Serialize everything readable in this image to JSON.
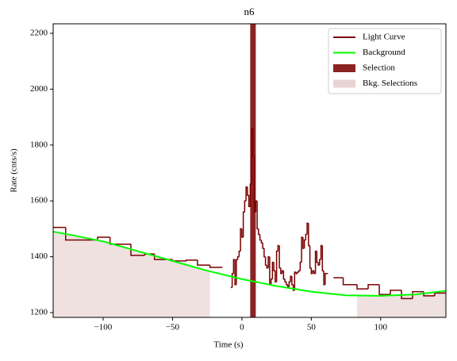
{
  "chart_data": {
    "type": "lightcurve",
    "title": "n6",
    "x_label": "Time (s)",
    "y_label": "Rate (cnts/s)",
    "xlim": [
      -136,
      147
    ],
    "ylim": [
      1183,
      2234
    ],
    "xticks": [
      {
        "value": -100,
        "label": "−100"
      },
      {
        "value": -50,
        "label": "−50"
      },
      0,
      50,
      100
    ],
    "yticks": [
      1200,
      1400,
      1600,
      1800,
      2000,
      2200
    ],
    "legend": "upper right",
    "light_curve": {
      "name": "Light Curve",
      "color": "#7a0000",
      "bins": [
        -136,
        -127,
        -104,
        -95,
        -80,
        -70,
        -63,
        -50,
        -40,
        -32,
        -23,
        -14,
        -8,
        -7,
        -6,
        -5,
        -4,
        -3,
        -2,
        -1,
        0,
        1,
        2,
        3,
        4,
        5,
        6,
        7,
        8,
        9,
        10,
        11,
        12,
        13,
        14,
        15,
        16,
        17,
        18,
        19,
        20,
        21,
        22,
        23,
        24,
        25,
        26,
        27,
        28,
        29,
        30,
        31,
        32,
        33,
        34,
        35,
        36,
        37,
        38,
        39,
        40,
        41,
        42,
        43,
        44,
        45,
        46,
        47,
        48,
        49,
        50,
        51,
        52,
        53,
        54,
        55,
        56,
        57,
        58,
        59,
        60,
        61,
        62,
        66,
        73,
        83,
        91,
        99,
        107,
        115,
        123,
        131,
        139,
        147
      ],
      "values": [
        1505,
        1460,
        1470,
        1445,
        1405,
        1410,
        1390,
        1385,
        1388,
        1370,
        1362,
        null,
        1290,
        1340,
        1390,
        1300,
        1390,
        1400,
        1420,
        1500,
        1470,
        1560,
        1600,
        1650,
        1620,
        1580,
        1660,
        1860,
        1760,
        1560,
        1600,
        1500,
        1480,
        1460,
        1450,
        1430,
        1400,
        1370,
        1360,
        1400,
        1300,
        1320,
        1380,
        1350,
        1310,
        1420,
        1440,
        1360,
        1340,
        1350,
        1320,
        1310,
        1300,
        1290,
        1310,
        1330,
        1300,
        1280,
        1345,
        1340,
        1345,
        1350,
        1380,
        1470,
        1430,
        1460,
        1480,
        1520,
        1440,
        1360,
        1340,
        1350,
        1340,
        1420,
        1380,
        1370,
        1390,
        1440,
        1350,
        1300,
        1340,
        1340,
        null,
        1325,
        1300,
        1285,
        1300,
        1265,
        1280,
        1250,
        1275,
        1260,
        1270
      ]
    },
    "background": {
      "name": "Background",
      "color": "#00ff00",
      "x": [
        -136,
        -120,
        -100,
        -75,
        -50,
        -25,
        0,
        25,
        50,
        75,
        100,
        125,
        147
      ],
      "values": [
        1490,
        1475,
        1455,
        1420,
        1385,
        1350,
        1320,
        1295,
        1275,
        1262,
        1260,
        1265,
        1278
      ]
    },
    "selection": {
      "name": "Selection",
      "color": "#8b2323",
      "range": [
        6,
        10
      ]
    },
    "bkg_selections": {
      "name": "Bkg. Selections",
      "color": "#e9d4d4",
      "ranges": [
        [
          -136,
          -23
        ],
        [
          83,
          147
        ]
      ]
    }
  }
}
